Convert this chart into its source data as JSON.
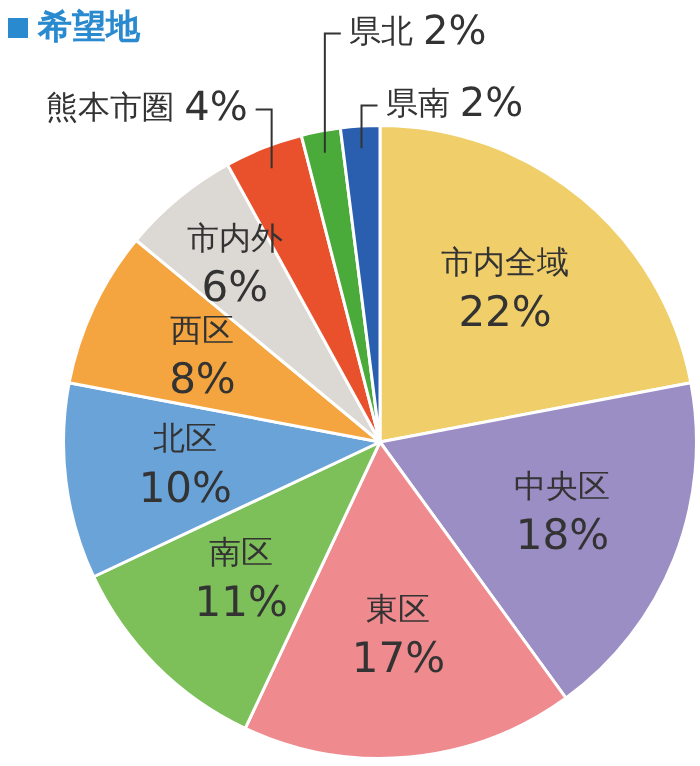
{
  "chart_data": {
    "type": "pie",
    "title": "希望地",
    "categories": [
      "市内全域",
      "中央区",
      "東区",
      "南区",
      "北区",
      "西区",
      "市内外",
      "熊本市圏",
      "県北",
      "県南"
    ],
    "values": [
      22,
      18,
      17,
      11,
      10,
      8,
      6,
      4,
      2,
      2
    ],
    "colors": [
      "#f0cf6a",
      "#9b8ec4",
      "#ef8a8e",
      "#7dc05a",
      "#6aa3d8",
      "#f5a53f",
      "#dcd8d4",
      "#e8512c",
      "#4aaa3a",
      "#2a5fb0"
    ],
    "value_labels": [
      "22%",
      "18%",
      "17%",
      "11%",
      "10%",
      "8%",
      "6%",
      "4%",
      "2%",
      "2%"
    ],
    "legend": false
  }
}
